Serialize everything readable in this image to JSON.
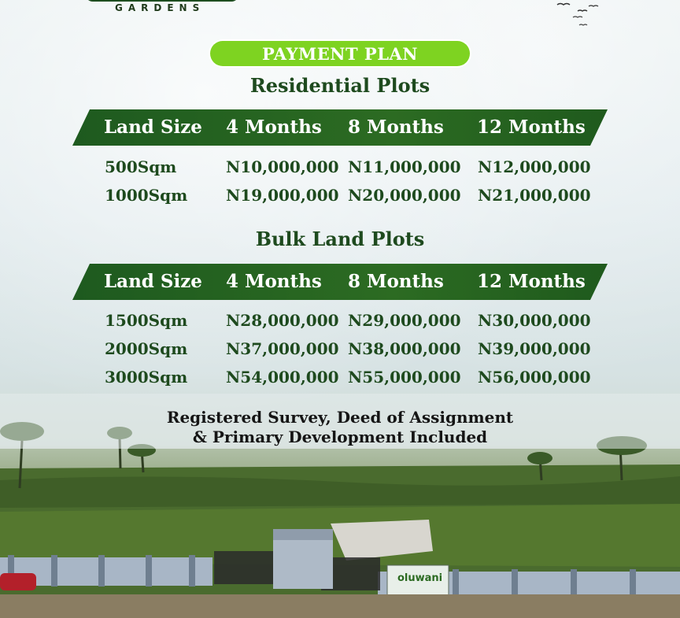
{
  "brand": {
    "logo_sub": "GARDENS",
    "gate_sign": "oluwani"
  },
  "header": {
    "badge": "PAYMENT PLAN"
  },
  "residential": {
    "title": "Residential Plots",
    "columns": [
      "Land Size",
      "4 Months",
      "8 Months",
      "12 Months"
    ],
    "rows": [
      [
        "500Sqm",
        "N10,000,000",
        "N11,000,000",
        "N12,000,000"
      ],
      [
        "1000Sqm",
        "N19,000,000",
        "N20,000,000",
        "N21,000,000"
      ]
    ]
  },
  "bulk": {
    "title": "Bulk Land Plots",
    "columns": [
      "Land Size",
      "4 Months",
      "8 Months",
      "12 Months"
    ],
    "rows": [
      [
        "1500Sqm",
        "N28,000,000",
        "N29,000,000",
        "N30,000,000"
      ],
      [
        "2000Sqm",
        "N37,000,000",
        "N38,000,000",
        "N39,000,000"
      ],
      [
        "3000Sqm",
        "N54,000,000",
        "N55,000,000",
        "N56,000,000"
      ]
    ]
  },
  "footer": {
    "line1": "Registered Survey, Deed of Assignment",
    "line2": "& Primary Development Included"
  },
  "colors": {
    "accent_green": "#7ed321",
    "band_green": "#2c6b22",
    "text_green": "#1e4a1e"
  }
}
